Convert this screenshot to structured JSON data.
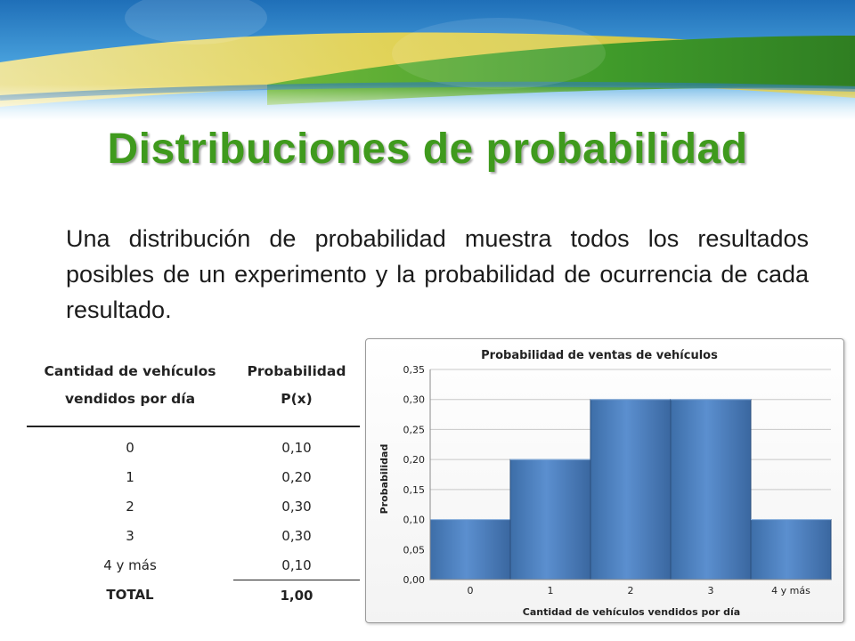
{
  "slide": {
    "title": "Distribuciones de probabilidad",
    "intro": "Una distribución de probabilidad muestra todos los resultados posibles de un experimento y la probabilidad de ocurrencia de cada resultado."
  },
  "table": {
    "headers": [
      [
        "Cantidad de vehículos",
        "vendidos por día"
      ],
      [
        "Probabilidad",
        "P(x)"
      ]
    ],
    "rows": [
      [
        "0",
        "0,10"
      ],
      [
        "1",
        "0,20"
      ],
      [
        "2",
        "0,30"
      ],
      [
        "3",
        "0,30"
      ],
      [
        "4 y más",
        "0,10"
      ]
    ],
    "total": [
      "TOTAL",
      "1,00"
    ]
  },
  "colors": {
    "title": "#3f9a1d",
    "bar": "#4f81bd",
    "bar_edge": "#2c4f7c"
  },
  "chart_data": {
    "type": "bar",
    "title": "Probabilidad de ventas de vehículos",
    "xlabel": "Cantidad de vehículos vendidos por día",
    "ylabel": "Probabilidad",
    "categories": [
      "0",
      "1",
      "2",
      "3",
      "4 y más"
    ],
    "values": [
      0.1,
      0.2,
      0.3,
      0.3,
      0.1
    ],
    "ylim": [
      0,
      0.35
    ],
    "yticks": [
      "0,00",
      "0,05",
      "0,10",
      "0,15",
      "0,20",
      "0,25",
      "0,30",
      "0,35"
    ],
    "grid": true,
    "legend": "none"
  }
}
